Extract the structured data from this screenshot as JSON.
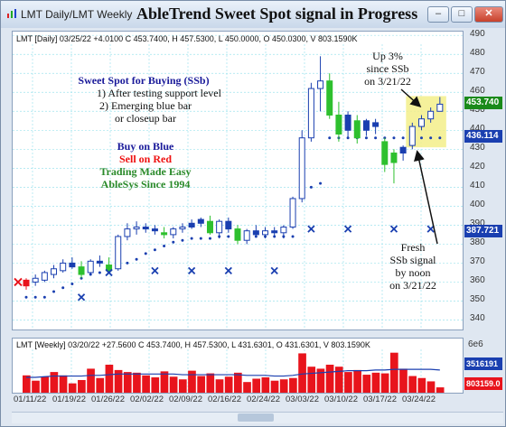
{
  "window": {
    "tab_label": "LMT Daily/LMT Weekly",
    "title": "AbleTrend Sweet Spot signal in Progress",
    "buttons": {
      "minimize": "–",
      "maximize": "□",
      "close": "✕"
    }
  },
  "daily_header": "LMT [Daily] 03/25/22  +4.0100 C 453.7400, H 457.5300, L 450.0000, O 450.0300, V 803.1590K",
  "weekly_header": "LMT [Weekly] 03/20/22  +27.5600 C 453.7400, H 457.5300, L 431.6301, O 431.6301, V 803.1590K",
  "annotations": {
    "sweet_spot_title": "Sweet Spot for Buying (SSb)",
    "sweet_spot_line1": "1) After testing support level",
    "sweet_spot_line2": "2) Emerging blue bar",
    "sweet_spot_line3": "or closeup bar",
    "buy_on_blue": "Buy on Blue",
    "sell_on_red": "Sell on Red",
    "trading_easy": "Trading Made Easy",
    "ablesys": "AbleSys Since 1994",
    "up_line1": "Up 3%",
    "up_line2": "since SSb",
    "up_line3": "on 3/21/22",
    "fresh_line1": "Fresh",
    "fresh_line2": "SSb signal",
    "fresh_line3": "by noon",
    "fresh_line4": "on 3/21/22"
  },
  "price_axis": {
    "ticks": [
      "490",
      "480",
      "470",
      "460",
      "450",
      "440",
      "430",
      "420",
      "410",
      "400",
      "390",
      "380",
      "370",
      "360",
      "350",
      "340"
    ],
    "tags": [
      {
        "label": "453.740",
        "color": "#1a8a1a"
      },
      {
        "label": "436.114",
        "color": "#1a3fb0"
      },
      {
        "label": "387.721",
        "color": "#1a3fb0"
      }
    ]
  },
  "volume_axis": {
    "ticks": [
      "6e6",
      "3516191",
      "803159.0"
    ]
  },
  "date_axis": {
    "labels": [
      "01/11/22",
      "01/19/22",
      "01/26/22",
      "02/02/22",
      "02/09/22",
      "02/16/22",
      "02/24/22",
      "03/03/22",
      "03/10/22",
      "03/17/22",
      "03/24/22"
    ]
  },
  "colors": {
    "blue_bar": "#1a3fb0",
    "red_bar": "#e8141c",
    "green_bar": "#2ec02e",
    "hollow_bar": "#1a3fb0",
    "highlight": "#f3ee8a",
    "volume_bar": "#e8141c"
  },
  "chart_data": {
    "type": "candlestick",
    "ylim": [
      335,
      492
    ],
    "daily_bars": [
      {
        "o": 358,
        "h": 362,
        "l": 356,
        "c": 361,
        "t": "red"
      },
      {
        "o": 360,
        "h": 364,
        "l": 358,
        "c": 362,
        "t": "hollow"
      },
      {
        "o": 361,
        "h": 366,
        "l": 360,
        "c": 365,
        "t": "hollow"
      },
      {
        "o": 364,
        "h": 369,
        "l": 362,
        "c": 367,
        "t": "hollow"
      },
      {
        "o": 366,
        "h": 372,
        "l": 365,
        "c": 370,
        "t": "hollow"
      },
      {
        "o": 370,
        "h": 373,
        "l": 367,
        "c": 368,
        "t": "blue"
      },
      {
        "o": 368,
        "h": 371,
        "l": 362,
        "c": 364,
        "t": "green"
      },
      {
        "o": 365,
        "h": 372,
        "l": 364,
        "c": 371,
        "t": "hollow"
      },
      {
        "o": 371,
        "h": 374,
        "l": 368,
        "c": 370,
        "t": "blue"
      },
      {
        "o": 369,
        "h": 373,
        "l": 365,
        "c": 366,
        "t": "green"
      },
      {
        "o": 367,
        "h": 385,
        "l": 366,
        "c": 384,
        "t": "hollow"
      },
      {
        "o": 384,
        "h": 391,
        "l": 382,
        "c": 388,
        "t": "hollow"
      },
      {
        "o": 388,
        "h": 392,
        "l": 385,
        "c": 389,
        "t": "hollow"
      },
      {
        "o": 389,
        "h": 391,
        "l": 386,
        "c": 388,
        "t": "blue"
      },
      {
        "o": 388,
        "h": 390,
        "l": 385,
        "c": 387,
        "t": "blue"
      },
      {
        "o": 386,
        "h": 389,
        "l": 383,
        "c": 385,
        "t": "green"
      },
      {
        "o": 385,
        "h": 389,
        "l": 383,
        "c": 388,
        "t": "hollow"
      },
      {
        "o": 388,
        "h": 391,
        "l": 386,
        "c": 389,
        "t": "hollow"
      },
      {
        "o": 389,
        "h": 393,
        "l": 388,
        "c": 391,
        "t": "blue"
      },
      {
        "o": 391,
        "h": 394,
        "l": 389,
        "c": 393,
        "t": "blue"
      },
      {
        "o": 392,
        "h": 395,
        "l": 385,
        "c": 386,
        "t": "green"
      },
      {
        "o": 386,
        "h": 393,
        "l": 383,
        "c": 392,
        "t": "hollow"
      },
      {
        "o": 392,
        "h": 394,
        "l": 386,
        "c": 388,
        "t": "blue"
      },
      {
        "o": 388,
        "h": 390,
        "l": 380,
        "c": 382,
        "t": "green"
      },
      {
        "o": 382,
        "h": 388,
        "l": 380,
        "c": 387,
        "t": "hollow"
      },
      {
        "o": 387,
        "h": 390,
        "l": 384,
        "c": 385,
        "t": "blue"
      },
      {
        "o": 385,
        "h": 389,
        "l": 383,
        "c": 387,
        "t": "hollow"
      },
      {
        "o": 387,
        "h": 389,
        "l": 384,
        "c": 386,
        "t": "blue"
      },
      {
        "o": 386,
        "h": 390,
        "l": 383,
        "c": 389,
        "t": "hollow"
      },
      {
        "o": 389,
        "h": 405,
        "l": 388,
        "c": 404,
        "t": "hollow"
      },
      {
        "o": 404,
        "h": 440,
        "l": 402,
        "c": 436,
        "t": "hollow"
      },
      {
        "o": 436,
        "h": 465,
        "l": 434,
        "c": 462,
        "t": "hollow"
      },
      {
        "o": 462,
        "h": 479,
        "l": 450,
        "c": 466,
        "t": "hollow"
      },
      {
        "o": 466,
        "h": 470,
        "l": 446,
        "c": 448,
        "t": "green"
      },
      {
        "o": 448,
        "h": 455,
        "l": 434,
        "c": 438,
        "t": "green"
      },
      {
        "o": 440,
        "h": 450,
        "l": 436,
        "c": 448,
        "t": "blue"
      },
      {
        "o": 445,
        "h": 448,
        "l": 433,
        "c": 436,
        "t": "green"
      },
      {
        "o": 440,
        "h": 446,
        "l": 437,
        "c": 445,
        "t": "blue"
      },
      {
        "o": 442,
        "h": 446,
        "l": 438,
        "c": 444,
        "t": "blue"
      },
      {
        "o": 434,
        "h": 436,
        "l": 418,
        "c": 422,
        "t": "green"
      },
      {
        "o": 423,
        "h": 430,
        "l": 412,
        "c": 428,
        "t": "green"
      },
      {
        "o": 428,
        "h": 432,
        "l": 424,
        "c": 431,
        "t": "blue"
      },
      {
        "o": 432,
        "h": 444,
        "l": 430,
        "c": 442,
        "t": "hollow"
      },
      {
        "o": 442,
        "h": 448,
        "l": 440,
        "c": 446,
        "t": "hollow"
      },
      {
        "o": 446,
        "h": 452,
        "l": 444,
        "c": 450,
        "t": "hollow"
      },
      {
        "o": 450,
        "h": 457.53,
        "l": 450,
        "c": 453.74,
        "t": "hollow"
      }
    ],
    "support_dots": [
      352,
      352,
      352,
      355,
      357,
      359,
      362,
      364,
      365,
      366,
      368,
      370,
      372,
      375,
      377,
      379,
      381,
      382,
      383,
      383,
      383,
      384,
      384,
      384,
      384,
      384,
      384,
      384,
      384,
      384,
      408,
      410,
      412,
      436,
      436,
      436,
      436,
      436,
      436,
      436,
      436,
      436,
      436,
      436,
      436,
      436
    ],
    "x_markers": [
      {
        "i": 9,
        "y": 365
      },
      {
        "i": 6,
        "y": 352
      },
      {
        "i": 14,
        "y": 366
      },
      {
        "i": 18,
        "y": 366
      },
      {
        "i": 22,
        "y": 366
      },
      {
        "i": 27,
        "y": 366
      },
      {
        "i": 31,
        "y": 388
      },
      {
        "i": 35,
        "y": 388
      },
      {
        "i": 40,
        "y": 388
      },
      {
        "i": 44,
        "y": 388
      }
    ],
    "volume_values": [
      2.6,
      1.8,
      2.4,
      3.1,
      2.6,
      1.4,
      1.9,
      3.6,
      2.2,
      4.2,
      3.4,
      3.1,
      3.0,
      2.6,
      2.3,
      3.2,
      2.4,
      2.0,
      3.3,
      2.5,
      2.9,
      2.0,
      2.4,
      3.0,
      1.6,
      2.1,
      2.3,
      1.8,
      2.0,
      2.2,
      5.9,
      3.9,
      3.6,
      4.2,
      3.9,
      3.1,
      3.4,
      2.7,
      3.0,
      2.9,
      6.0,
      3.6,
      2.5,
      2.2,
      1.7,
      0.8
    ],
    "volume_ma": [
      2.3,
      2.3,
      2.4,
      2.5,
      2.5,
      2.5,
      2.5,
      2.6,
      2.6,
      2.7,
      2.8,
      2.8,
      2.8,
      2.8,
      2.8,
      2.8,
      2.8,
      2.7,
      2.7,
      2.7,
      2.7,
      2.7,
      2.7,
      2.7,
      2.6,
      2.6,
      2.6,
      2.5,
      2.5,
      2.6,
      2.8,
      2.9,
      3.0,
      3.1,
      3.2,
      3.3,
      3.3,
      3.3,
      3.4,
      3.4,
      3.5,
      3.5,
      3.5,
      3.5,
      3.5,
      3.4
    ],
    "volume_ylim": [
      0,
      6.5
    ]
  }
}
